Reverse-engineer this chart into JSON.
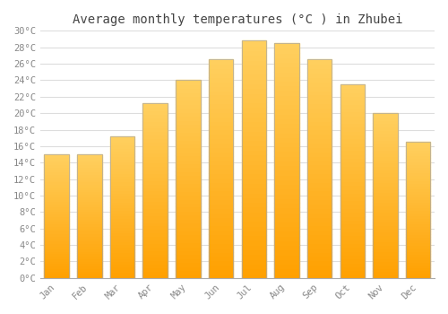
{
  "title": "Average monthly temperatures (°C ) in Zhubei",
  "months": [
    "Jan",
    "Feb",
    "Mar",
    "Apr",
    "May",
    "Jun",
    "Jul",
    "Aug",
    "Sep",
    "Oct",
    "Nov",
    "Dec"
  ],
  "temperatures": [
    15.0,
    15.0,
    17.2,
    21.2,
    24.0,
    26.5,
    28.8,
    28.5,
    26.5,
    23.5,
    20.0,
    16.5
  ],
  "bar_color_bottom": "#FFA000",
  "bar_color_top": "#FFD060",
  "bar_edge_color": "#AAAAAA",
  "ylim": [
    0,
    30
  ],
  "ytick_step": 2,
  "background_color": "#FFFFFF",
  "grid_color": "#DDDDDD",
  "title_fontsize": 10,
  "tick_fontsize": 7.5,
  "font_family": "monospace"
}
